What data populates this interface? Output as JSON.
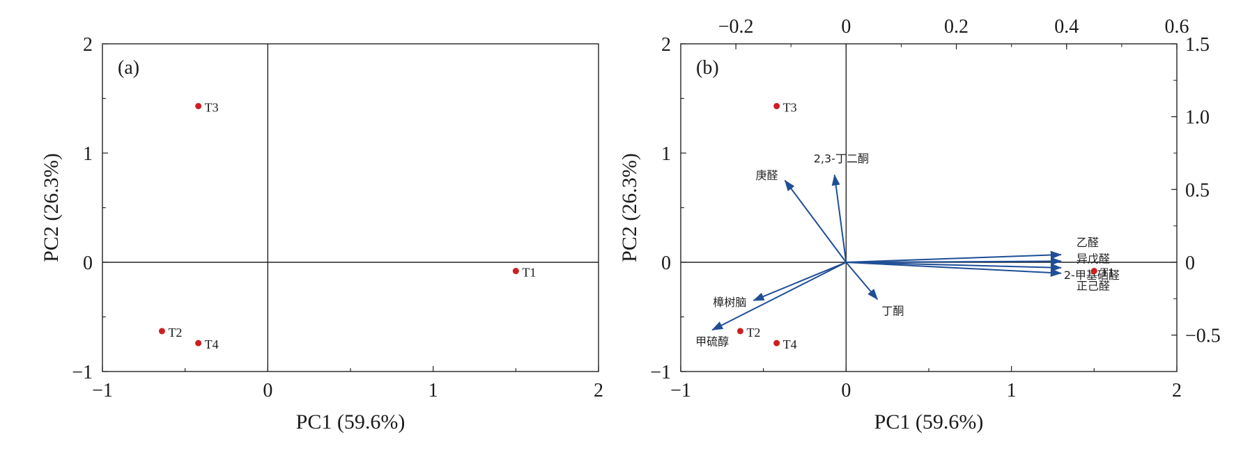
{
  "chart_data": [
    {
      "type": "scatter",
      "panel_label": "(a)",
      "xlabel": "PC1 (59.6%)",
      "ylabel": "PC2 (26.3%)",
      "xlim": [
        -1,
        2
      ],
      "ylim": [
        -1,
        2
      ],
      "x_ticks": [
        -1,
        0,
        1,
        2
      ],
      "y_ticks": [
        -1,
        0,
        1,
        2
      ],
      "x_tick_labels": [
        "−1",
        "0",
        "1",
        "2"
      ],
      "y_tick_labels": [
        "−1",
        "0",
        "1",
        "2"
      ],
      "points": [
        {
          "label": "T1",
          "x": 1.5,
          "y": -0.08
        },
        {
          "label": "T2",
          "x": -0.64,
          "y": -0.63
        },
        {
          "label": "T3",
          "x": -0.42,
          "y": 1.43
        },
        {
          "label": "T4",
          "x": -0.42,
          "y": -0.74
        }
      ],
      "point_color": "#cc1f1f",
      "zero_lines": true
    },
    {
      "type": "scatter",
      "panel_label": "(b)",
      "xlabel": "PC1 (59.6%)",
      "ylabel": "PC2 (26.3%)",
      "xlim": [
        -1,
        2
      ],
      "ylim": [
        -1,
        2
      ],
      "x_ticks": [
        -1,
        0,
        1,
        2
      ],
      "y_ticks": [
        -1,
        0,
        1,
        2
      ],
      "x_tick_labels": [
        "−1",
        "0",
        "1",
        "2"
      ],
      "y_tick_labels": [
        "−1",
        "0",
        "1",
        "2"
      ],
      "x2_ticks": [
        -0.2,
        0,
        0.2,
        0.4,
        0.6
      ],
      "x2_tick_labels": [
        "−0.2",
        "0",
        "0.2",
        "0.4",
        "0.6"
      ],
      "y2_ticks": [
        -0.5,
        0,
        0.5,
        1.0,
        1.5
      ],
      "y2_tick_labels": [
        "−0.5",
        "0",
        "0.5",
        "1.0",
        "1.5"
      ],
      "points": [
        {
          "label": "T1",
          "x": 1.5,
          "y": -0.08
        },
        {
          "label": "T2",
          "x": -0.64,
          "y": -0.63
        },
        {
          "label": "T3",
          "x": -0.42,
          "y": 1.43
        },
        {
          "label": "T4",
          "x": -0.42,
          "y": -0.74
        }
      ],
      "point_color": "#cc1f1f",
      "vector_color": "#1f4e96",
      "vectors": [
        {
          "label": "庚醛",
          "x": -0.37,
          "y": 0.75
        },
        {
          "label": "2,3-丁二酮",
          "x": -0.07,
          "y": 0.8
        },
        {
          "label": "乙醛",
          "x": 1.3,
          "y": 0.07
        },
        {
          "label": "异戊醛",
          "x": 1.3,
          "y": 0.01
        },
        {
          "label": "2-甲基硒醛",
          "x": 1.3,
          "y": -0.05
        },
        {
          "label": "正己醛",
          "x": 1.3,
          "y": -0.1
        },
        {
          "label": "丁酮",
          "x": 0.19,
          "y": -0.34
        },
        {
          "label": "樟树脑",
          "x": -0.56,
          "y": -0.35
        },
        {
          "label": "甲硫醇",
          "x": -0.81,
          "y": -0.62
        }
      ],
      "zero_lines": true
    }
  ]
}
